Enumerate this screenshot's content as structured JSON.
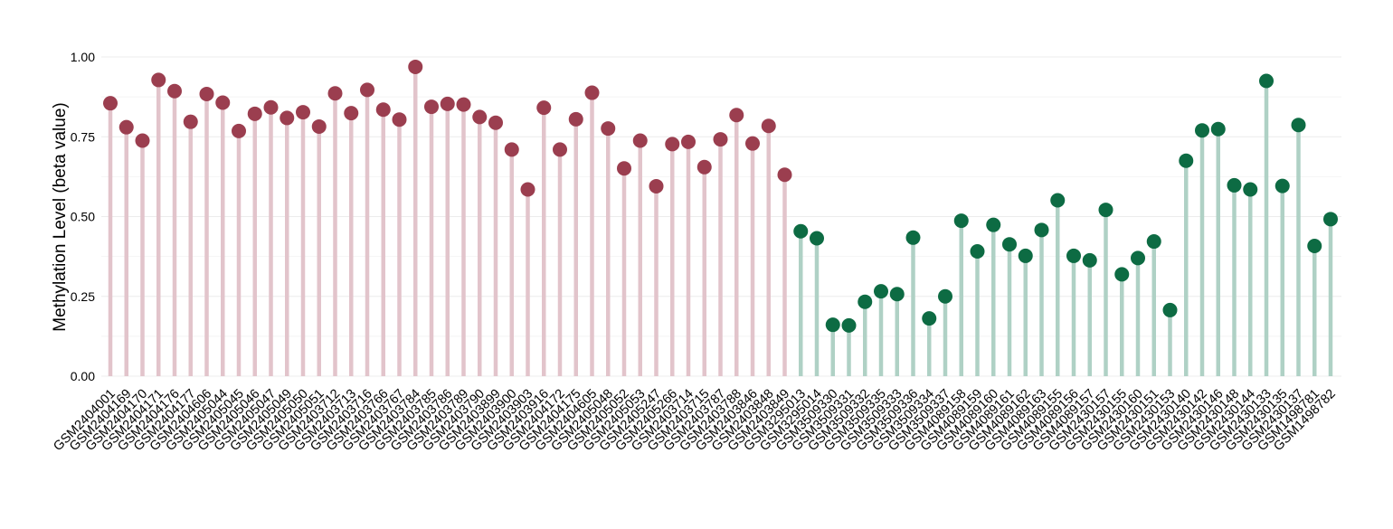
{
  "chart_data": {
    "type": "lollipop",
    "ylabel": "Methylation Level (beta value)",
    "ylim": [
      0,
      1
    ],
    "yticks": [
      {
        "value": 0.0,
        "label": "0.00"
      },
      {
        "value": 0.25,
        "label": "0.25"
      },
      {
        "value": 0.5,
        "label": "0.50"
      },
      {
        "value": 0.75,
        "label": "0.75"
      },
      {
        "value": 1.0,
        "label": "1.00"
      }
    ],
    "grid": true,
    "colors": {
      "group1_point": "#9b3e4f",
      "group1_stem": "#e2c4cb",
      "group2_point": "#0d6b43",
      "group2_stem": "#afd1c5",
      "grid": "#ececec",
      "text": "#000000"
    },
    "groups": [
      {
        "group_id": 1,
        "points": [
          {
            "x": "GSM2404001",
            "y": 0.855
          },
          {
            "x": "GSM2404169",
            "y": 0.78
          },
          {
            "x": "GSM2404170",
            "y": 0.738
          },
          {
            "x": "GSM2404171",
            "y": 0.928
          },
          {
            "x": "GSM2404176",
            "y": 0.893
          },
          {
            "x": "GSM2404177",
            "y": 0.797
          },
          {
            "x": "GSM2404606",
            "y": 0.884
          },
          {
            "x": "GSM2405044",
            "y": 0.857
          },
          {
            "x": "GSM2405045",
            "y": 0.768
          },
          {
            "x": "GSM2405046",
            "y": 0.822
          },
          {
            "x": "GSM2405047",
            "y": 0.842
          },
          {
            "x": "GSM2405049",
            "y": 0.809
          },
          {
            "x": "GSM2405050",
            "y": 0.827
          },
          {
            "x": "GSM2405051",
            "y": 0.782
          },
          {
            "x": "GSM2403712",
            "y": 0.886
          },
          {
            "x": "GSM2403713",
            "y": 0.824
          },
          {
            "x": "GSM2403716",
            "y": 0.897
          },
          {
            "x": "GSM2403766",
            "y": 0.835
          },
          {
            "x": "GSM2403767",
            "y": 0.804
          },
          {
            "x": "GSM2403784",
            "y": 0.969
          },
          {
            "x": "GSM2403785",
            "y": 0.844
          },
          {
            "x": "GSM2403786",
            "y": 0.853
          },
          {
            "x": "GSM2403789",
            "y": 0.851
          },
          {
            "x": "GSM2403790",
            "y": 0.812
          },
          {
            "x": "GSM2403899",
            "y": 0.794
          },
          {
            "x": "GSM2403900",
            "y": 0.71
          },
          {
            "x": "GSM2403903",
            "y": 0.585
          },
          {
            "x": "GSM2403916",
            "y": 0.841
          },
          {
            "x": "GSM2404172",
            "y": 0.71
          },
          {
            "x": "GSM2404175",
            "y": 0.805
          },
          {
            "x": "GSM2404605",
            "y": 0.888
          },
          {
            "x": "GSM2405048",
            "y": 0.776
          },
          {
            "x": "GSM2405052",
            "y": 0.651
          },
          {
            "x": "GSM2405053",
            "y": 0.738
          },
          {
            "x": "GSM2405247",
            "y": 0.595
          },
          {
            "x": "GSM2405266",
            "y": 0.727
          },
          {
            "x": "GSM2403714",
            "y": 0.734
          },
          {
            "x": "GSM2403715",
            "y": 0.655
          },
          {
            "x": "GSM2403787",
            "y": 0.742
          },
          {
            "x": "GSM2403788",
            "y": 0.818
          },
          {
            "x": "GSM2403846",
            "y": 0.729
          },
          {
            "x": "GSM2403848",
            "y": 0.784
          },
          {
            "x": "GSM2403849",
            "y": 0.631
          }
        ]
      },
      {
        "group_id": 2,
        "points": [
          {
            "x": "GSM3295013",
            "y": 0.454
          },
          {
            "x": "GSM3295014",
            "y": 0.432
          },
          {
            "x": "GSM3509330",
            "y": 0.161
          },
          {
            "x": "GSM3509331",
            "y": 0.159
          },
          {
            "x": "GSM3509332",
            "y": 0.233
          },
          {
            "x": "GSM3509335",
            "y": 0.266
          },
          {
            "x": "GSM3509333",
            "y": 0.257
          },
          {
            "x": "GSM3509336",
            "y": 0.434
          },
          {
            "x": "GSM3509334",
            "y": 0.181
          },
          {
            "x": "GSM3509337",
            "y": 0.25
          },
          {
            "x": "GSM4089158",
            "y": 0.487
          },
          {
            "x": "GSM4089159",
            "y": 0.391
          },
          {
            "x": "GSM4089160",
            "y": 0.474
          },
          {
            "x": "GSM4089161",
            "y": 0.413
          },
          {
            "x": "GSM4089162",
            "y": 0.377
          },
          {
            "x": "GSM4089163",
            "y": 0.458
          },
          {
            "x": "GSM4089155",
            "y": 0.551
          },
          {
            "x": "GSM4089156",
            "y": 0.377
          },
          {
            "x": "GSM4089157",
            "y": 0.363
          },
          {
            "x": "GSM2430157",
            "y": 0.521
          },
          {
            "x": "GSM2430155",
            "y": 0.319
          },
          {
            "x": "GSM2430160",
            "y": 0.37
          },
          {
            "x": "GSM2430151",
            "y": 0.422
          },
          {
            "x": "GSM2430153",
            "y": 0.207
          },
          {
            "x": "GSM2430140",
            "y": 0.675
          },
          {
            "x": "GSM2430142",
            "y": 0.77
          },
          {
            "x": "GSM2430146",
            "y": 0.774
          },
          {
            "x": "GSM2430148",
            "y": 0.598
          },
          {
            "x": "GSM2430144",
            "y": 0.585
          },
          {
            "x": "GSM2430133",
            "y": 0.925
          },
          {
            "x": "GSM2430135",
            "y": 0.596
          },
          {
            "x": "GSM2430137",
            "y": 0.787
          },
          {
            "x": "GSM1498781",
            "y": 0.408
          },
          {
            "x": "GSM1498782",
            "y": 0.492
          }
        ]
      }
    ]
  }
}
